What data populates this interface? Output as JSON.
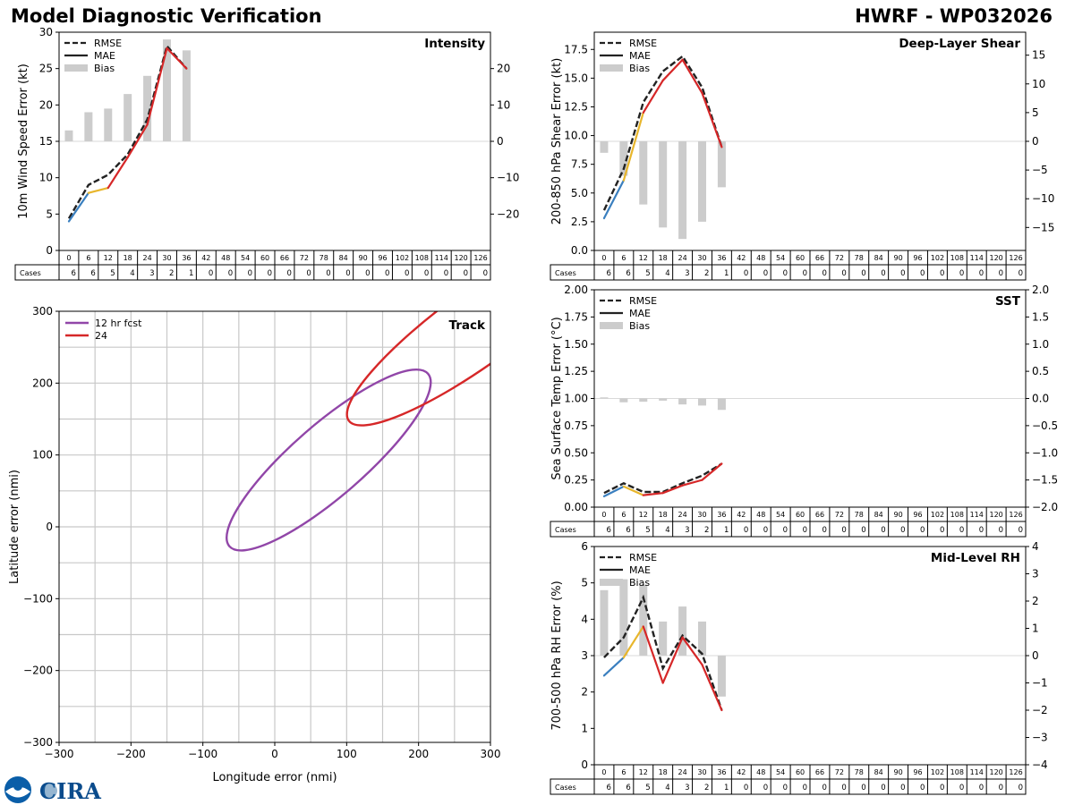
{
  "header": {
    "title": "Model Diagnostic Verification",
    "model": "HWRF - WP032026"
  },
  "taus": [
    0,
    6,
    12,
    18,
    24,
    30,
    36,
    42,
    48,
    54,
    60,
    66,
    72,
    78,
    84,
    90,
    96,
    102,
    108,
    114,
    120,
    126
  ],
  "legend": {
    "rmse": "RMSE",
    "mae": "MAE",
    "bias": "Bias"
  },
  "cases_label": "Cases",
  "colors": {
    "rmse": "#222222",
    "mae_seg": [
      "#3a7fbf",
      "#e8b62c",
      "#d62728"
    ],
    "bias": "#cccccc",
    "track12": "#9146a8",
    "track24": "#d62728"
  },
  "logos": {
    "noaa": "NOAA",
    "cira": "CIRA"
  },
  "chart_data": [
    {
      "id": "intensity",
      "type": "line",
      "title": "Intensity",
      "ylabel": "10m Wind Speed Error (kt)",
      "ylim": [
        0,
        30
      ],
      "yticks": [
        0,
        5,
        10,
        15,
        20,
        25,
        30
      ],
      "y2lim": [
        -30,
        30
      ],
      "y2ticks": [
        -20,
        -10,
        0,
        10,
        20
      ],
      "x": [
        0,
        6,
        12,
        18,
        24,
        30,
        36
      ],
      "rmse": [
        4.4,
        9.0,
        10.4,
        13.2,
        18.0,
        28.1,
        25.0
      ],
      "mae": [
        4.0,
        7.9,
        8.6,
        12.8,
        17.3,
        27.8,
        25.0
      ],
      "bias": [
        3,
        8,
        9,
        13,
        18,
        28,
        25
      ],
      "cases": [
        6,
        6,
        5,
        4,
        3,
        2,
        1,
        0,
        0,
        0,
        0,
        0,
        0,
        0,
        0,
        0,
        0,
        0,
        0,
        0,
        0,
        0
      ]
    },
    {
      "id": "shear",
      "type": "line",
      "title": "Deep-Layer Shear",
      "ylabel": "200-850 hPa Shear Error (kt)",
      "ylim": [
        0,
        19
      ],
      "yticks": [
        "0.0",
        "2.5",
        "5.0",
        "7.5",
        "10.0",
        "12.5",
        "15.0",
        "17.5"
      ],
      "y2lim": [
        -19,
        19
      ],
      "y2ticks": [
        -15,
        -10,
        -5,
        0,
        5,
        10,
        15
      ],
      "x": [
        0,
        6,
        12,
        18,
        24,
        30,
        36
      ],
      "rmse": [
        3.5,
        7.1,
        12.9,
        15.6,
        16.9,
        14.2,
        9.0
      ],
      "mae": [
        2.8,
        6.1,
        12.0,
        14.8,
        16.6,
        13.7,
        9.0
      ],
      "bias": [
        -2,
        -6,
        -11,
        -15,
        -17,
        -14,
        -8
      ],
      "cases": [
        6,
        6,
        5,
        4,
        3,
        2,
        1,
        0,
        0,
        0,
        0,
        0,
        0,
        0,
        0,
        0,
        0,
        0,
        0,
        0,
        0,
        0
      ]
    },
    {
      "id": "sst",
      "type": "line",
      "title": "SST",
      "ylabel": "Sea Surface Temp Error (°C)",
      "ylim": [
        0,
        2
      ],
      "yticks": [
        "0.00",
        "0.25",
        "0.50",
        "0.75",
        "1.00",
        "1.25",
        "1.50",
        "1.75",
        "2.00"
      ],
      "y2lim": [
        -2,
        2
      ],
      "y2ticks": [
        "−2.0",
        "−1.5",
        "−1.0",
        "−0.5",
        "0.0",
        "0.5",
        "1.0",
        "1.5",
        "2.0"
      ],
      "x": [
        0,
        6,
        12,
        18,
        24,
        30,
        36
      ],
      "rmse": [
        0.13,
        0.22,
        0.14,
        0.14,
        0.22,
        0.29,
        0.4
      ],
      "mae": [
        0.1,
        0.19,
        0.11,
        0.13,
        0.2,
        0.25,
        0.4
      ],
      "bias": [
        0.02,
        -0.07,
        -0.06,
        -0.04,
        -0.11,
        -0.13,
        -0.21
      ],
      "cases": [
        6,
        6,
        5,
        4,
        3,
        2,
        1,
        0,
        0,
        0,
        0,
        0,
        0,
        0,
        0,
        0,
        0,
        0,
        0,
        0,
        0,
        0
      ]
    },
    {
      "id": "rh",
      "type": "line",
      "title": "Mid-Level RH",
      "ylabel": "700-500 hPa RH Error (%)",
      "ylim": [
        0,
        6
      ],
      "yticks": [
        0,
        1,
        2,
        3,
        4,
        5,
        6
      ],
      "y2lim": [
        -4,
        4
      ],
      "y2ticks": [
        -4,
        -3,
        -2,
        -1,
        0,
        1,
        2,
        3,
        4
      ],
      "x": [
        0,
        6,
        12,
        18,
        24,
        30,
        36
      ],
      "rmse": [
        2.95,
        3.5,
        4.6,
        2.65,
        3.55,
        3.05,
        1.5
      ],
      "mae": [
        2.45,
        2.95,
        3.8,
        2.25,
        3.5,
        2.75,
        1.5
      ],
      "bias": [
        2.4,
        2.8,
        2.6,
        1.25,
        1.8,
        1.25,
        -1.5
      ],
      "cases": [
        6,
        6,
        5,
        4,
        3,
        2,
        1,
        0,
        0,
        0,
        0,
        0,
        0,
        0,
        0,
        0,
        0,
        0,
        0,
        0,
        0,
        0
      ]
    },
    {
      "id": "track",
      "type": "ellipse",
      "title": "Track",
      "xlabel": "Longitude error (nmi)",
      "ylabel": "Latitude error (nmi)",
      "xlim": [
        -300,
        300
      ],
      "ylim": [
        -300,
        300
      ],
      "ticks": [
        "−300",
        "−200",
        "−100",
        "0",
        "100",
        "200",
        "300"
      ],
      "series": [
        {
          "name": "12 hr fcst",
          "cx": 75,
          "cy": 93,
          "a": 183,
          "b": 50,
          "angle": 41
        },
        {
          "name": "24",
          "cx": 285,
          "cy": 280,
          "a": 225,
          "b": 52,
          "angle": 36
        }
      ]
    }
  ]
}
